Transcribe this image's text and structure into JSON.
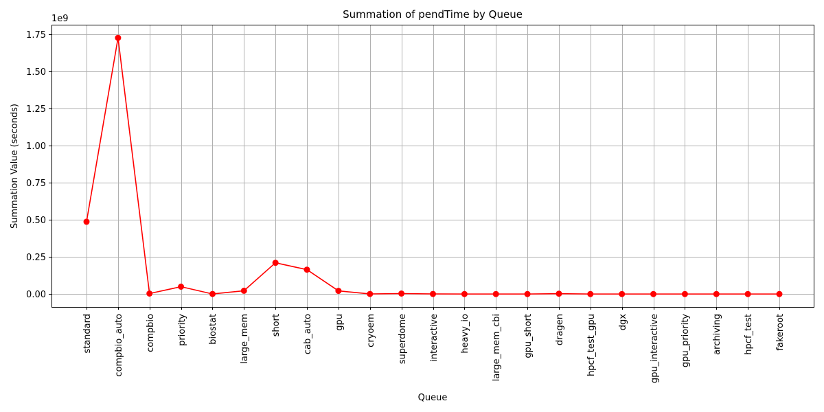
{
  "chart_data": {
    "type": "line",
    "title": "Summation of pendTime by Queue",
    "xlabel": "Queue",
    "ylabel": "Summation Value (seconds)",
    "y_offset_text": "1e9",
    "y_scale": 1000000000,
    "ylim": [
      -0.0865,
      1.8165
    ],
    "yticks": [
      0.0,
      0.25,
      0.5,
      0.75,
      1.0,
      1.25,
      1.5,
      1.75
    ],
    "ytick_labels": [
      "0.00",
      "0.25",
      "0.50",
      "0.75",
      "1.00",
      "1.25",
      "1.50",
      "1.75"
    ],
    "grid": true,
    "categories": [
      "standard",
      "compbio_auto",
      "compbio",
      "priority",
      "biostat",
      "large_mem",
      "short",
      "cab_auto",
      "gpu",
      "cryoem",
      "superdome",
      "interactive",
      "heavy_io",
      "large_mem_cbi",
      "gpu_short",
      "dragen",
      "hpcf_test_gpu",
      "dgx",
      "gpu_interactive",
      "gpu_priority",
      "archiving",
      "hpcf_test",
      "fakeroot"
    ],
    "series": [
      {
        "color": "#ff0000",
        "marker": "circle",
        "values": [
          0.488,
          1.728,
          0.004,
          0.05,
          0.001,
          0.023,
          0.211,
          0.165,
          0.022,
          0.001,
          0.004,
          0.001,
          0.0005,
          0.0005,
          0.0005,
          0.003,
          0.0005,
          0.0005,
          0.0005,
          0.0005,
          0.0005,
          0.0005,
          0.0005
        ]
      }
    ]
  }
}
